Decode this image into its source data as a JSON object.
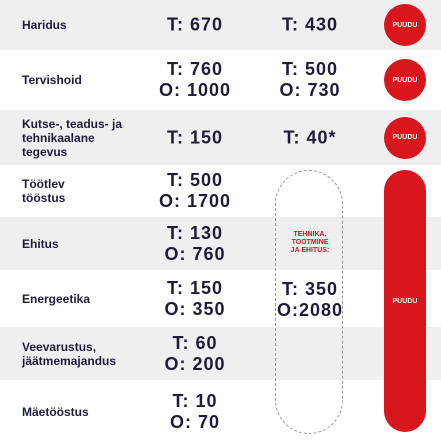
{
  "rows": [
    {
      "label": [
        "Haridus"
      ],
      "total": [
        "T: 670"
      ],
      "other": [
        "T: 430"
      ],
      "status": "PUUDU"
    },
    {
      "label": [
        "Tervishoid"
      ],
      "total": [
        "T: 760",
        "O: 1000"
      ],
      "other": [
        "T: 500",
        "O: 730"
      ],
      "status": "PUUDU"
    },
    {
      "label": [
        "Kutse-, teadus- ja",
        "tehnikaalane",
        "tegevus"
      ],
      "total": [
        "T: 150"
      ],
      "other": [
        "T: 40*"
      ],
      "status": "PUUDU"
    },
    {
      "label": [
        "Töötlev",
        "tööstus"
      ],
      "total": [
        "T: 500",
        "O: 1700"
      ]
    },
    {
      "label": [
        "Ehitus"
      ],
      "total": [
        "T: 130",
        "O: 760"
      ]
    },
    {
      "label": [
        "Energeetika"
      ],
      "total": [
        "T: 150",
        "O: 350"
      ]
    },
    {
      "label": [
        "Veevarustus,",
        "jäätmemajandus"
      ],
      "total": [
        "T: 60",
        "O: 200"
      ]
    },
    {
      "label": [
        "Mäetööstus"
      ],
      "total": [
        "T: 10",
        "O: 70"
      ]
    }
  ],
  "merged": {
    "label": [
      "TEHNIKA,",
      "TOOTMINE",
      "JA EHITUS:"
    ],
    "values": [
      "T: 350",
      "O:2080"
    ],
    "status": "PUUDU"
  }
}
